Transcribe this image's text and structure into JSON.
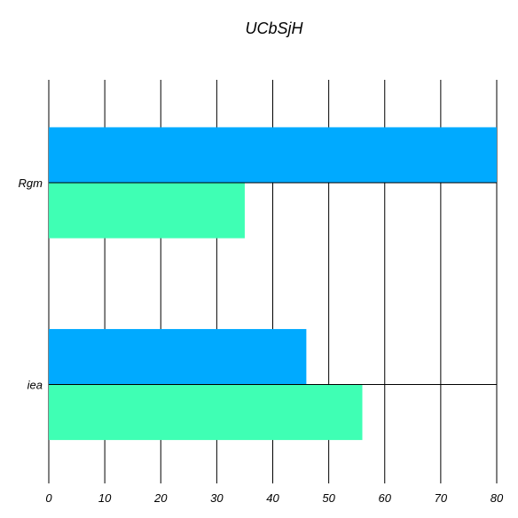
{
  "chart_data": {
    "type": "bar",
    "orientation": "horizontal",
    "title": "UCbSjH",
    "xlabel": "",
    "ylabel": "",
    "categories": [
      "Rgm",
      "iea"
    ],
    "series": [
      {
        "values": [
          80,
          46
        ],
        "color": "#00aaff"
      },
      {
        "values": [
          35,
          56
        ],
        "color": "#3fffb4"
      }
    ],
    "xlim": [
      0,
      80
    ],
    "xticks": [
      "0",
      "10",
      "20",
      "30",
      "40",
      "50",
      "60",
      "70",
      "80"
    ],
    "grid": true
  }
}
